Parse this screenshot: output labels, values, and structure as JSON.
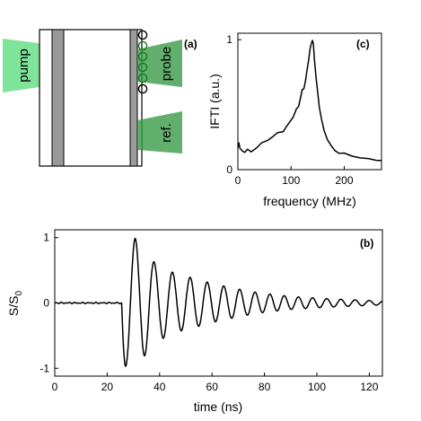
{
  "panel_a": {
    "label": "(a)",
    "pump_label": "pump",
    "probe_label": "probe",
    "ref_label": "ref.",
    "colors": {
      "beam": "#49d96e",
      "beam_dark": "#3a9a48",
      "layer": "#9a9a9a",
      "ring": "#1f7a22"
    }
  },
  "chart_data": [
    {
      "id": "c",
      "type": "line",
      "panel_label": "(c)",
      "xlabel": "frequency (MHz)",
      "ylabel": "IFTI (a.u.)",
      "xlim": [
        0,
        270
      ],
      "ylim": [
        0,
        1.05
      ],
      "xticks": [
        0,
        100,
        200
      ],
      "yticks": [
        0,
        1
      ],
      "grid": false,
      "series": [
        {
          "x": [
            0,
            2,
            4,
            6,
            9,
            13,
            18,
            25,
            35,
            45,
            55,
            65,
            75,
            85,
            92,
            98,
            104,
            110,
            114,
            118,
            121,
            124,
            127,
            130,
            133,
            136,
            138,
            140,
            142,
            144,
            147,
            150,
            153,
            157,
            162,
            168,
            175,
            182,
            190,
            200,
            215,
            230,
            245,
            260,
            270
          ],
          "y": [
            0.17,
            0.2,
            0.17,
            0.15,
            0.14,
            0.14,
            0.15,
            0.14,
            0.17,
            0.2,
            0.23,
            0.25,
            0.28,
            0.3,
            0.33,
            0.37,
            0.41,
            0.46,
            0.49,
            0.56,
            0.61,
            0.63,
            0.68,
            0.76,
            0.85,
            0.93,
            0.97,
            1.0,
            0.96,
            0.85,
            0.71,
            0.59,
            0.49,
            0.39,
            0.3,
            0.24,
            0.18,
            0.15,
            0.13,
            0.12,
            0.11,
            0.09,
            0.08,
            0.08,
            0.07
          ]
        }
      ]
    },
    {
      "id": "b",
      "type": "line",
      "panel_label": "(b)",
      "xlabel": "time (ns)",
      "ylabel": "S/S",
      "ylabel_sub": "0",
      "xlim": [
        0,
        125
      ],
      "ylim": [
        -1.12,
        1.12
      ],
      "xticks": [
        0,
        20,
        40,
        60,
        80,
        100,
        120
      ],
      "yticks": [
        -1,
        0,
        1
      ],
      "grid": false,
      "series": [
        {
          "signal": {
            "onset": 25.5,
            "baseline_noise": 0.012,
            "first_trough": -0.97,
            "period_start": 7.5,
            "period_end": 5.4,
            "peaks": [
              {
                "t": 30.5,
                "v": 1.0
              },
              {
                "t": 38.5,
                "v": 0.6
              },
              {
                "t": 46,
                "v": 0.45
              },
              {
                "t": 53,
                "v": 0.38
              },
              {
                "t": 60,
                "v": 0.3
              },
              {
                "t": 67,
                "v": 0.24
              },
              {
                "t": 73,
                "v": 0.19
              },
              {
                "t": 79,
                "v": 0.15
              },
              {
                "t": 90,
                "v": 0.1
              },
              {
                "t": 102,
                "v": 0.07
              },
              {
                "t": 113,
                "v": 0.05
              },
              {
                "t": 125,
                "v": 0.03
              }
            ]
          }
        }
      ]
    }
  ]
}
